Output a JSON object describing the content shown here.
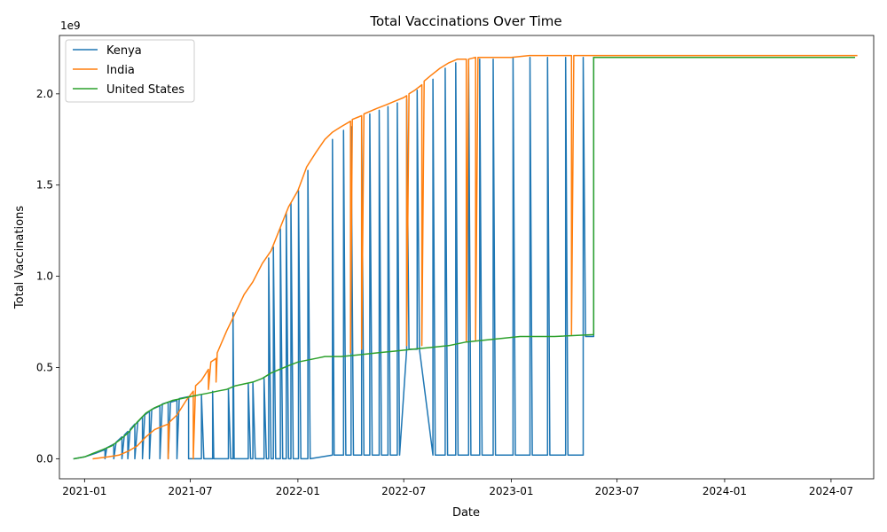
{
  "chart_data": {
    "type": "line",
    "title": "Total Vaccinations Over Time",
    "xlabel": "Date",
    "ylabel": "Total Vaccinations",
    "y_scale_label": "1e9",
    "y_scale_factor": 1000000000,
    "xlim": [
      "2020-11-19",
      "2024-09-12"
    ],
    "ylim": [
      -0.11,
      2.32
    ],
    "x_ticks": [
      "2021-01",
      "2021-07",
      "2022-01",
      "2022-07",
      "2023-01",
      "2023-07",
      "2024-01",
      "2024-07"
    ],
    "y_ticks": [
      0.0,
      0.5,
      1.0,
      1.5,
      2.0
    ],
    "y_tick_labels": [
      "0.0",
      "0.5",
      "1.0",
      "1.5",
      "2.0"
    ],
    "grid": false,
    "legend_position": "top-left",
    "note": "Values in units of 1e9. Kenya series alternates rapidly between a low baseline and the global cumulative level (data artifact); listed points are the traced polyline vertices.",
    "series": [
      {
        "name": "Kenya",
        "color": "#1f77b4",
        "points": [
          [
            "2020-12-14",
            0.0
          ],
          [
            "2021-01-01",
            0.01
          ],
          [
            "2021-01-20",
            0.03
          ],
          [
            "2021-02-05",
            0.05
          ],
          [
            "2021-02-05",
            0.0
          ],
          [
            "2021-02-08",
            0.06
          ],
          [
            "2021-02-20",
            0.08
          ],
          [
            "2021-02-20",
            0.0
          ],
          [
            "2021-02-24",
            0.09
          ],
          [
            "2021-03-06",
            0.12
          ],
          [
            "2021-03-06",
            0.0
          ],
          [
            "2021-03-10",
            0.13
          ],
          [
            "2021-03-16",
            0.15
          ],
          [
            "2021-03-16",
            0.0
          ],
          [
            "2021-03-20",
            0.16
          ],
          [
            "2021-03-28",
            0.19
          ],
          [
            "2021-03-28",
            0.0
          ],
          [
            "2021-04-02",
            0.2
          ],
          [
            "2021-04-10",
            0.23
          ],
          [
            "2021-04-10",
            0.0
          ],
          [
            "2021-04-14",
            0.24
          ],
          [
            "2021-04-22",
            0.26
          ],
          [
            "2021-04-22",
            0.0
          ],
          [
            "2021-04-26",
            0.27
          ],
          [
            "2021-05-10",
            0.29
          ],
          [
            "2021-05-10",
            0.0
          ],
          [
            "2021-05-14",
            0.3
          ],
          [
            "2021-05-24",
            0.31
          ],
          [
            "2021-05-24",
            0.0
          ],
          [
            "2021-05-28",
            0.31
          ],
          [
            "2021-06-08",
            0.32
          ],
          [
            "2021-06-08",
            0.0
          ],
          [
            "2021-06-12",
            0.33
          ],
          [
            "2021-06-28",
            0.34
          ],
          [
            "2021-06-28",
            0.0
          ],
          [
            "2021-07-20",
            0.0
          ],
          [
            "2021-07-20",
            0.35
          ],
          [
            "2021-07-24",
            0.0
          ],
          [
            "2021-08-08",
            0.0
          ],
          [
            "2021-08-08",
            0.37
          ],
          [
            "2021-08-10",
            0.0
          ],
          [
            "2021-09-04",
            0.0
          ],
          [
            "2021-09-04",
            0.38
          ],
          [
            "2021-09-08",
            0.0
          ],
          [
            "2021-09-12",
            0.0
          ],
          [
            "2021-09-12",
            0.8
          ],
          [
            "2021-09-14",
            0.0
          ],
          [
            "2021-10-08",
            0.0
          ],
          [
            "2021-10-08",
            0.41
          ],
          [
            "2021-10-12",
            0.0
          ],
          [
            "2021-10-16",
            0.0
          ],
          [
            "2021-10-16",
            0.42
          ],
          [
            "2021-10-20",
            0.0
          ],
          [
            "2021-11-04",
            0.0
          ],
          [
            "2021-11-04",
            0.44
          ],
          [
            "2021-11-08",
            0.0
          ],
          [
            "2021-11-12",
            0.0
          ],
          [
            "2021-11-12",
            1.1
          ],
          [
            "2021-11-16",
            0.0
          ],
          [
            "2021-11-20",
            0.0
          ],
          [
            "2021-11-20",
            1.16
          ],
          [
            "2021-11-24",
            0.0
          ],
          [
            "2021-12-02",
            0.0
          ],
          [
            "2021-12-02",
            1.26
          ],
          [
            "2021-12-06",
            0.0
          ],
          [
            "2021-12-12",
            0.0
          ],
          [
            "2021-12-12",
            1.35
          ],
          [
            "2021-12-16",
            0.0
          ],
          [
            "2021-12-20",
            0.0
          ],
          [
            "2021-12-20",
            1.4
          ],
          [
            "2021-12-24",
            0.0
          ],
          [
            "2022-01-02",
            0.0
          ],
          [
            "2022-01-02",
            1.47
          ],
          [
            "2022-01-06",
            0.0
          ],
          [
            "2022-01-18",
            0.0
          ],
          [
            "2022-01-18",
            1.58
          ],
          [
            "2022-01-22",
            0.0
          ],
          [
            "2022-03-01",
            0.02
          ],
          [
            "2022-03-01",
            1.75
          ],
          [
            "2022-03-04",
            0.02
          ],
          [
            "2022-03-20",
            0.02
          ],
          [
            "2022-03-20",
            1.8
          ],
          [
            "2022-03-24",
            0.02
          ],
          [
            "2022-04-02",
            0.02
          ],
          [
            "2022-04-02",
            1.82
          ],
          [
            "2022-04-06",
            0.02
          ],
          [
            "2022-04-20",
            0.02
          ],
          [
            "2022-04-20",
            1.86
          ],
          [
            "2022-04-24",
            0.02
          ],
          [
            "2022-05-04",
            0.02
          ],
          [
            "2022-05-04",
            1.89
          ],
          [
            "2022-05-08",
            0.02
          ],
          [
            "2022-05-20",
            0.02
          ],
          [
            "2022-05-20",
            1.91
          ],
          [
            "2022-05-24",
            0.02
          ],
          [
            "2022-06-04",
            0.02
          ],
          [
            "2022-06-04",
            1.93
          ],
          [
            "2022-06-08",
            0.02
          ],
          [
            "2022-06-20",
            0.02
          ],
          [
            "2022-06-20",
            1.95
          ],
          [
            "2022-06-24",
            0.02
          ],
          [
            "2022-07-06",
            0.6
          ],
          [
            "2022-07-06",
            1.97
          ],
          [
            "2022-07-10",
            0.6
          ],
          [
            "2022-07-24",
            0.6
          ],
          [
            "2022-07-24",
            2.02
          ],
          [
            "2022-07-28",
            0.6
          ],
          [
            "2022-08-20",
            0.02
          ],
          [
            "2022-08-20",
            2.08
          ],
          [
            "2022-08-24",
            0.02
          ],
          [
            "2022-09-10",
            0.02
          ],
          [
            "2022-09-10",
            2.14
          ],
          [
            "2022-09-14",
            0.02
          ],
          [
            "2022-09-28",
            0.02
          ],
          [
            "2022-09-28",
            2.17
          ],
          [
            "2022-10-02",
            0.02
          ],
          [
            "2022-10-20",
            0.02
          ],
          [
            "2022-10-20",
            2.19
          ],
          [
            "2022-10-24",
            0.02
          ],
          [
            "2022-11-08",
            0.02
          ],
          [
            "2022-11-08",
            2.19
          ],
          [
            "2022-11-12",
            0.02
          ],
          [
            "2022-12-01",
            0.02
          ],
          [
            "2022-12-01",
            2.19
          ],
          [
            "2022-12-05",
            0.02
          ],
          [
            "2023-01-04",
            0.02
          ],
          [
            "2023-01-04",
            2.2
          ],
          [
            "2023-01-08",
            0.02
          ],
          [
            "2023-02-02",
            0.02
          ],
          [
            "2023-02-02",
            2.2
          ],
          [
            "2023-02-06",
            0.02
          ],
          [
            "2023-03-04",
            0.02
          ],
          [
            "2023-03-04",
            2.2
          ],
          [
            "2023-03-08",
            0.02
          ],
          [
            "2023-04-04",
            0.02
          ],
          [
            "2023-04-04",
            2.2
          ],
          [
            "2023-04-08",
            0.02
          ],
          [
            "2023-05-04",
            0.02
          ],
          [
            "2023-05-04",
            2.2
          ],
          [
            "2023-05-08",
            0.67
          ],
          [
            "2023-05-22",
            0.67
          ],
          [
            "2023-05-22",
            2.2
          ]
        ]
      },
      {
        "name": "India",
        "color": "#ff7f0e",
        "points": [
          [
            "2021-01-16",
            0.0
          ],
          [
            "2021-02-10",
            0.01
          ],
          [
            "2021-03-01",
            0.02
          ],
          [
            "2021-03-16",
            0.04
          ],
          [
            "2021-04-01",
            0.07
          ],
          [
            "2021-04-16",
            0.12
          ],
          [
            "2021-05-01",
            0.16
          ],
          [
            "2021-05-16",
            0.18
          ],
          [
            "2021-05-24",
            0.19
          ],
          [
            "2021-05-24",
            0.0
          ],
          [
            "2021-05-26",
            0.2
          ],
          [
            "2021-06-08",
            0.24
          ],
          [
            "2021-06-24",
            0.32
          ],
          [
            "2021-07-06",
            0.37
          ],
          [
            "2021-07-06",
            0.0
          ],
          [
            "2021-07-10",
            0.4
          ],
          [
            "2021-07-20",
            0.43
          ],
          [
            "2021-08-01",
            0.49
          ],
          [
            "2021-08-01",
            0.38
          ],
          [
            "2021-08-05",
            0.53
          ],
          [
            "2021-08-14",
            0.55
          ],
          [
            "2021-08-14",
            0.42
          ],
          [
            "2021-08-16",
            0.58
          ],
          [
            "2021-09-01",
            0.7
          ],
          [
            "2021-09-16",
            0.8
          ],
          [
            "2021-10-01",
            0.9
          ],
          [
            "2021-10-16",
            0.97
          ],
          [
            "2021-11-01",
            1.07
          ],
          [
            "2021-11-16",
            1.14
          ],
          [
            "2021-12-01",
            1.26
          ],
          [
            "2021-12-16",
            1.38
          ],
          [
            "2022-01-01",
            1.47
          ],
          [
            "2022-01-16",
            1.6
          ],
          [
            "2022-02-01",
            1.68
          ],
          [
            "2022-02-16",
            1.75
          ],
          [
            "2022-03-01",
            1.79
          ],
          [
            "2022-03-16",
            1.82
          ],
          [
            "2022-04-01",
            1.85
          ],
          [
            "2022-04-01",
            0.58
          ],
          [
            "2022-04-04",
            1.86
          ],
          [
            "2022-04-20",
            1.88
          ],
          [
            "2022-04-20",
            0.6
          ],
          [
            "2022-04-24",
            1.89
          ],
          [
            "2022-05-16",
            1.92
          ],
          [
            "2022-06-01",
            1.94
          ],
          [
            "2022-06-16",
            1.96
          ],
          [
            "2022-07-01",
            1.98
          ],
          [
            "2022-07-06",
            1.99
          ],
          [
            "2022-07-06",
            0.62
          ],
          [
            "2022-07-10",
            2.0
          ],
          [
            "2022-07-20",
            2.02
          ],
          [
            "2022-08-01",
            2.05
          ],
          [
            "2022-08-01",
            0.62
          ],
          [
            "2022-08-05",
            2.07
          ],
          [
            "2022-08-16",
            2.1
          ],
          [
            "2022-09-01",
            2.14
          ],
          [
            "2022-09-16",
            2.17
          ],
          [
            "2022-10-01",
            2.19
          ],
          [
            "2022-10-16",
            2.19
          ],
          [
            "2022-10-16",
            0.64
          ],
          [
            "2022-10-20",
            2.19
          ],
          [
            "2022-11-01",
            2.2
          ],
          [
            "2022-11-01",
            0.65
          ],
          [
            "2022-11-05",
            2.2
          ],
          [
            "2023-01-01",
            2.2
          ],
          [
            "2023-02-01",
            2.21
          ],
          [
            "2023-03-01",
            2.21
          ],
          [
            "2023-04-14",
            2.21
          ],
          [
            "2023-04-14",
            0.68
          ],
          [
            "2023-04-18",
            2.21
          ],
          [
            "2023-05-24",
            2.21
          ],
          [
            "2024-01-01",
            2.21
          ],
          [
            "2024-08-14",
            2.21
          ]
        ]
      },
      {
        "name": "United States",
        "color": "#2ca02c",
        "points": [
          [
            "2020-12-14",
            0.0
          ],
          [
            "2021-01-01",
            0.01
          ],
          [
            "2021-01-16",
            0.03
          ],
          [
            "2021-02-01",
            0.05
          ],
          [
            "2021-02-16",
            0.07
          ],
          [
            "2021-03-01",
            0.1
          ],
          [
            "2021-03-16",
            0.14
          ],
          [
            "2021-04-01",
            0.2
          ],
          [
            "2021-04-16",
            0.25
          ],
          [
            "2021-05-01",
            0.28
          ],
          [
            "2021-05-16",
            0.3
          ],
          [
            "2021-06-01",
            0.32
          ],
          [
            "2021-06-16",
            0.33
          ],
          [
            "2021-07-01",
            0.34
          ],
          [
            "2021-07-16",
            0.35
          ],
          [
            "2021-08-01",
            0.36
          ],
          [
            "2021-08-16",
            0.37
          ],
          [
            "2021-09-01",
            0.38
          ],
          [
            "2021-09-16",
            0.4
          ],
          [
            "2021-10-01",
            0.41
          ],
          [
            "2021-10-16",
            0.42
          ],
          [
            "2021-11-01",
            0.44
          ],
          [
            "2021-11-16",
            0.47
          ],
          [
            "2021-12-01",
            0.49
          ],
          [
            "2021-12-16",
            0.51
          ],
          [
            "2022-01-01",
            0.53
          ],
          [
            "2022-01-16",
            0.54
          ],
          [
            "2022-02-01",
            0.55
          ],
          [
            "2022-02-16",
            0.56
          ],
          [
            "2022-03-16",
            0.56
          ],
          [
            "2022-04-16",
            0.57
          ],
          [
            "2022-05-16",
            0.58
          ],
          [
            "2022-06-16",
            0.59
          ],
          [
            "2022-07-16",
            0.6
          ],
          [
            "2022-08-16",
            0.61
          ],
          [
            "2022-09-16",
            0.62
          ],
          [
            "2022-10-16",
            0.64
          ],
          [
            "2022-11-16",
            0.65
          ],
          [
            "2022-12-16",
            0.66
          ],
          [
            "2023-01-16",
            0.67
          ],
          [
            "2023-03-16",
            0.67
          ],
          [
            "2023-05-22",
            0.68
          ],
          [
            "2023-05-22",
            2.2
          ],
          [
            "2023-07-01",
            2.2
          ],
          [
            "2024-01-01",
            2.2
          ],
          [
            "2024-08-10",
            2.2
          ]
        ]
      }
    ]
  }
}
